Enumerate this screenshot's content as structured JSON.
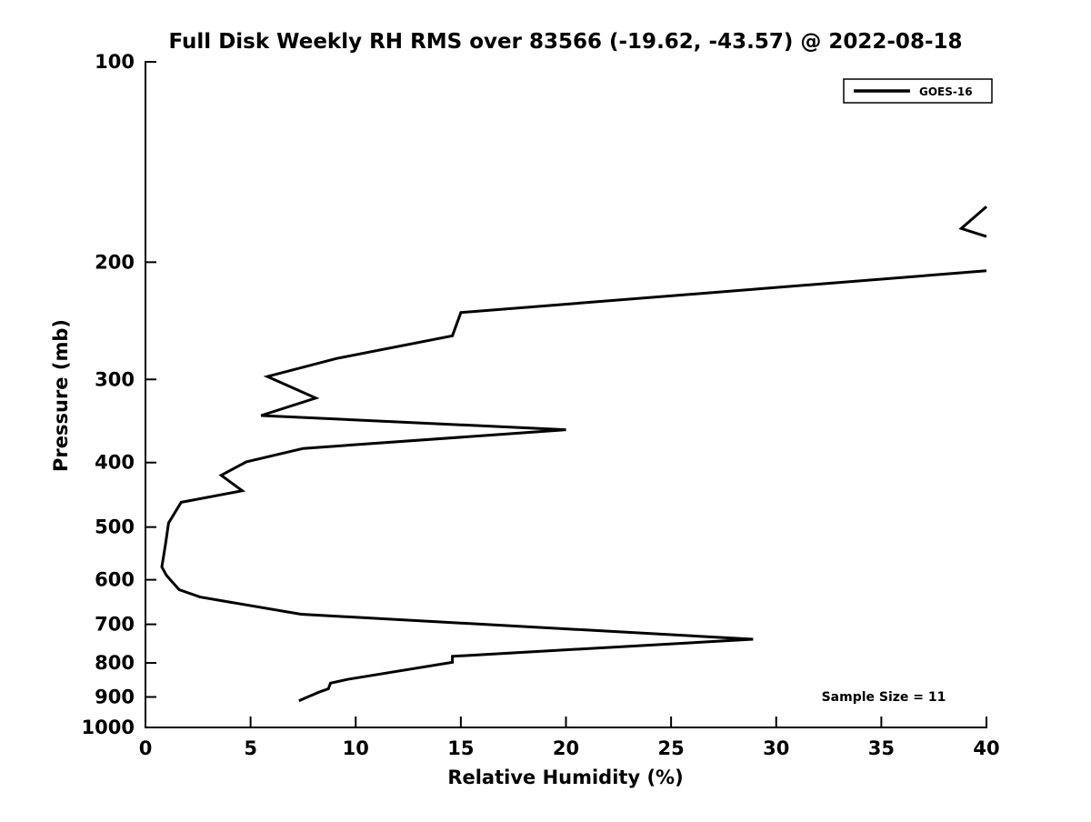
{
  "title": "Full Disk Weekly RH RMS over 83566 (-19.62, -43.57) @ 2022-08-18",
  "chart_data": {
    "type": "line",
    "title": "Full Disk Weekly RH RMS over 83566 (-19.62, -43.57) @ 2022-08-18",
    "xlabel": "Relative Humidity (%)",
    "ylabel": "Pressure (mb)",
    "xlim": [
      0,
      40
    ],
    "x_ticks": [
      0,
      5,
      10,
      15,
      20,
      25,
      30,
      35,
      40
    ],
    "y_scale": "log",
    "y_axis_direction": "pressure increases downward",
    "ylim_mb": [
      100,
      1000
    ],
    "y_ticks": [
      100,
      200,
      300,
      400,
      500,
      600,
      700,
      800,
      900,
      1000
    ],
    "grid": false,
    "line_color": "#000000",
    "background_color": "#ffffff",
    "legend": {
      "position": "top-right",
      "boxed": true,
      "entries": [
        {
          "label": "GOES-16",
          "color": "#000000"
        }
      ]
    },
    "annotation": "Sample Size = 11",
    "series": [
      {
        "name": "GOES-16",
        "color": "#000000",
        "note": "curve clipped at RH=40% between ~183 mb and ~206 mb",
        "segments": [
          [
            [
              40.0,
              165
            ],
            [
              38.8,
              178
            ],
            [
              40.0,
              183
            ]
          ],
          [
            [
              40.0,
              206
            ],
            [
              15.0,
              238
            ],
            [
              14.6,
              258
            ],
            [
              9.1,
              279
            ],
            [
              5.8,
              297
            ],
            [
              8.1,
              320
            ],
            [
              5.5,
              340
            ],
            [
              20.0,
              357
            ],
            [
              7.5,
              381
            ],
            [
              4.8,
              399
            ],
            [
              3.6,
              418
            ],
            [
              4.6,
              441
            ],
            [
              1.7,
              459
            ],
            [
              1.1,
              493
            ],
            [
              0.95,
              531
            ],
            [
              0.78,
              574
            ],
            [
              1.0,
              591
            ],
            [
              1.6,
              621
            ],
            [
              2.6,
              637
            ],
            [
              7.4,
              676
            ],
            [
              28.9,
              737
            ],
            [
              14.6,
              782
            ],
            [
              14.6,
              798
            ],
            [
              9.6,
              847
            ],
            [
              8.8,
              858
            ],
            [
              8.7,
              875
            ],
            [
              8.3,
              884
            ],
            [
              7.6,
              903
            ],
            [
              7.3,
              912
            ]
          ]
        ]
      }
    ]
  }
}
